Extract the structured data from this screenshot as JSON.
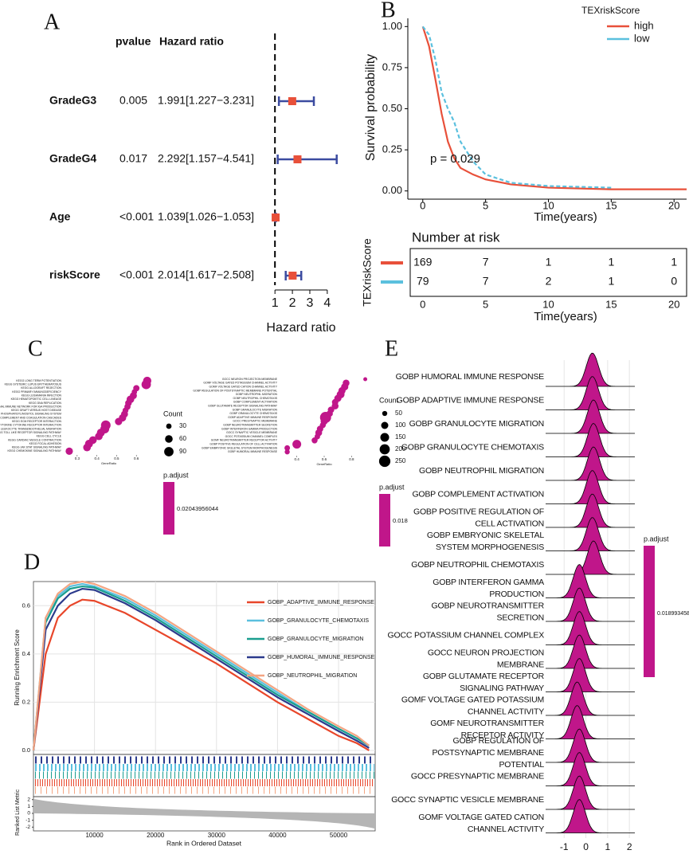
{
  "chart_data": [
    {
      "type": "forest",
      "panel": "A",
      "headers": [
        "pvalue",
        "Hazard ratio"
      ],
      "categories": [
        "GradeG3",
        "GradeG4",
        "Age",
        "riskScore"
      ],
      "pvalues": [
        "0.005",
        "0.017",
        "<0.001",
        "<0.001"
      ],
      "values": [
        1.991,
        2.292,
        1.039,
        2.014
      ],
      "lower": [
        1.227,
        1.157,
        1.026,
        1.617
      ],
      "upper": [
        3.231,
        4.541,
        1.053,
        2.508
      ],
      "value_labels": [
        "1.991[1.227−3.231]",
        "2.292[1.157−4.541]",
        "1.039[1.026−1.053]",
        "2.014[1.617−2.508]"
      ],
      "refline": 1,
      "xlim": [
        0.9,
        4.6
      ],
      "xticks": [
        1,
        2,
        3,
        4
      ],
      "xlabel": "Hazard ratio",
      "color": "#e8503a",
      "ci_color": "#3b4ba0"
    },
    {
      "type": "survival",
      "panel": "B",
      "ylabel": "Survival probability",
      "xlabel": "Time(years)",
      "legend_title": "TEXriskScore",
      "annotation": "p = 0.029",
      "xlim": [
        -1,
        21
      ],
      "xticks": [
        0,
        5,
        10,
        15,
        20
      ],
      "ylim": [
        -0.05,
        1.05
      ],
      "yticks": [
        {
          "value": 0,
          "label": "0.00"
        },
        {
          "value": 0.25,
          "label": "0.25"
        },
        {
          "value": 0.5,
          "label": "0.50"
        },
        {
          "value": 0.75,
          "label": "0.75"
        },
        {
          "value": 1,
          "label": "1.00"
        }
      ],
      "series": [
        {
          "name": "high",
          "color": "#e8503a",
          "x": [
            0,
            0.5,
            1,
            1.5,
            2,
            2.5,
            3,
            4,
            5,
            7,
            10,
            15,
            21
          ],
          "values": [
            1,
            0.88,
            0.68,
            0.47,
            0.3,
            0.2,
            0.14,
            0.1,
            0.07,
            0.04,
            0.02,
            0.01,
            0.01
          ]
        },
        {
          "name": "low",
          "color": "#5bc0de",
          "x": [
            0,
            0.5,
            1,
            1.5,
            2,
            2.5,
            3,
            4,
            5,
            7,
            10,
            15
          ],
          "values": [
            1,
            0.95,
            0.8,
            0.6,
            0.5,
            0.42,
            0.3,
            0.18,
            0.1,
            0.05,
            0.03,
            0.02
          ]
        }
      ],
      "risk_table": {
        "title": "Number at risk",
        "rows": [
          [
            169,
            7,
            1,
            1,
            1
          ],
          [
            79,
            7,
            2,
            1,
            0
          ]
        ],
        "xticks": [
          0,
          5,
          10,
          15,
          20
        ],
        "xlabel": "Time(years)",
        "ylabel": "TEXriskScore"
      }
    },
    {
      "type": "dot",
      "panel": "C",
      "xlabel": "GeneRatio",
      "color": "#c0168a",
      "size_title": "Count",
      "size_ticks": [
        30,
        60,
        90
      ],
      "color_title": "p.adjust",
      "color_label": "0.02043956044",
      "xlim": [
        0.24,
        0.68
      ],
      "xticks": [
        0.3,
        0.4,
        0.5,
        0.6
      ],
      "categories": [
        "KEGG LONG TERM POTENTIATION",
        "KEGG SYSTEMIC LUPUS ERYTHEMATOSUS",
        "KEGG ALLOGRAFT REJECTION",
        "KEGG PRIMARY IMMUNODEFICIENCY",
        "KEGG LEISHMANIA INFECTION",
        "KEGG HEMATOPOIETIC CELL LINEAGE",
        "KEGG DNA REPLICATION",
        "KEGG INTESTINAL IMMUNE NETWORK FOR IGA PRODUCTION",
        "KEGG GRAFT VERSUS HOST DISEASE",
        "KEGG PHOSPHATIDYLINOSITOL SIGNALING SYSTEM",
        "KEGG COMPLEMENT AND COAGULATION CASCADES",
        "KEGG ECM RECEPTOR INTERACTION",
        "KEGG CYTOKINE CYTOKINE RECEPTOR INTERACTION",
        "KEGG LEUKOCYTE TRANSENDOTHELIAL MIGRATION",
        "KEGG TOLL LIKE RECEPTOR SIGNALING PATHWAY",
        "KEGG CELL CYCLE",
        "KEGG CARDIAC MUSCLE CONTRACTION",
        "KEGG FOCAL ADHESION",
        "KEGG JAK STAT SIGNALING PATHWAY",
        "KEGG CHEMOKINE SIGNALING PATHWAY"
      ],
      "values": [
        0.655,
        0.65,
        0.6,
        0.59,
        0.585,
        0.57,
        0.56,
        0.555,
        0.545,
        0.54,
        0.53,
        0.51,
        0.445,
        0.44,
        0.42,
        0.41,
        0.38,
        0.36,
        0.35,
        0.26
      ],
      "sizes": [
        70,
        90,
        40,
        30,
        50,
        60,
        45,
        40,
        35,
        50,
        55,
        55,
        95,
        80,
        65,
        60,
        60,
        65,
        60,
        55
      ]
    },
    {
      "type": "dot",
      "xlabel": "GeneRatio",
      "color": "#c0168a",
      "size_title": "Count",
      "size_ticks": [
        50,
        100,
        150,
        200,
        250
      ],
      "color_title": "p.adjust",
      "color_label": "0.018",
      "xlim": [
        0.28,
        0.92
      ],
      "xticks": [
        0.4,
        0.6,
        0.8
      ],
      "categories": [
        "GOCC NEURON PROJECTION MEMBRANE",
        "GOMF VOLTAGE GATED POTASSIUM CHANNEL ACTIVITY",
        "GOMF VOLTAGE GATED CATION CHANNEL ACTIVITY",
        "GOBP REGULATION OF POSTSYNAPTIC MEMBRANE POTENTIAL",
        "GOBP NEUTROPHIL MIGRATION",
        "GOBP NEUTROPHIL CHEMOTAXIS",
        "GOBP COMPLEMENT ACTIVATION",
        "GOBP GLUTAMATE RECEPTOR SIGNALING PATHWAY",
        "GOBP GRANULOCYTE MIGRATION",
        "GOBP GRANULOCYTE CHEMOTAXIS",
        "GOBP ADAPTIVE IMMUNE RESPONSE",
        "GOCC PRESYNAPTIC MEMBRANE",
        "GOBP NEUROTRANSMITTER SECRETION",
        "GOBP INTERFERON GAMMA PRODUCTION",
        "GOCC SYNAPTIC VESICLE MEMBRANE",
        "GOCC POTASSIUM CHANNEL COMPLEX",
        "GOMF NEUROTRANSMITTER RECEPTOR ACTIVITY",
        "GOBP POSITIVE REGULATION OF CELL ACTIVATION",
        "GOBP EMBRYONIC SKELETAL SYSTEM MORPHOGENESIS",
        "GOBP HUMORAL IMMUNE RESPONSE"
      ],
      "values": [
        0.9,
        0.76,
        0.75,
        0.73,
        0.72,
        0.7,
        0.68,
        0.68,
        0.65,
        0.64,
        0.61,
        0.6,
        0.59,
        0.57,
        0.56,
        0.55,
        0.53,
        0.4,
        0.33,
        0.33
      ],
      "sizes": [
        30,
        90,
        100,
        100,
        120,
        100,
        80,
        90,
        80,
        80,
        240,
        100,
        70,
        80,
        90,
        60,
        70,
        150,
        60,
        50
      ]
    },
    {
      "type": "gsea",
      "panel": "D",
      "ylabel": "Running Enrichment Score",
      "xlabel": "Rank in Ordered Dataset",
      "metric_label": "Ranked List Metric",
      "xlim": [
        0,
        56000
      ],
      "xticks": [
        10000,
        20000,
        30000,
        40000,
        50000
      ],
      "ylim": [
        -0.01,
        0.7
      ],
      "yticks": [
        {
          "value": 0,
          "label": "0.0"
        },
        0.2,
        0.4,
        0.6
      ],
      "metric_ylim": [
        -2.2,
        2.2
      ],
      "metric_yticks": [
        2,
        1,
        0,
        -1,
        -2
      ],
      "x": [
        0,
        2000,
        4000,
        6000,
        8000,
        10000,
        15000,
        20000,
        25000,
        30000,
        35000,
        40000,
        45000,
        50000,
        53000,
        55000
      ],
      "series": [
        {
          "name": "GOBP_ADAPTIVE_IMMUNE_RESPONSE",
          "color": "#e8462a",
          "values": [
            0,
            0.4,
            0.55,
            0.6,
            0.625,
            0.62,
            0.57,
            0.5,
            0.43,
            0.36,
            0.28,
            0.2,
            0.13,
            0.06,
            0.03,
            0
          ]
        },
        {
          "name": "GOBP_GRANULOCYTE_CHEMOTAXIS",
          "color": "#5bc0de",
          "values": [
            0,
            0.55,
            0.64,
            0.68,
            0.69,
            0.68,
            0.63,
            0.56,
            0.48,
            0.4,
            0.32,
            0.24,
            0.16,
            0.09,
            0.05,
            0.02
          ]
        },
        {
          "name": "GOBP_GRANULOCYTE_MIGRATION",
          "color": "#1a9e8f",
          "values": [
            0,
            0.53,
            0.63,
            0.67,
            0.68,
            0.675,
            0.62,
            0.55,
            0.47,
            0.39,
            0.31,
            0.23,
            0.16,
            0.09,
            0.05,
            0.02
          ]
        },
        {
          "name": "GOBP_HUMORAL_IMMUNE_RESPONSE",
          "color": "#2b3a8c",
          "values": [
            0,
            0.5,
            0.6,
            0.65,
            0.67,
            0.665,
            0.61,
            0.54,
            0.46,
            0.38,
            0.3,
            0.22,
            0.15,
            0.08,
            0.04,
            0.01
          ]
        },
        {
          "name": "GOBP_NEUTROPHIL_MIGRATION",
          "color": "#f4a582",
          "values": [
            0,
            0.55,
            0.65,
            0.69,
            0.7,
            0.69,
            0.64,
            0.57,
            0.49,
            0.41,
            0.33,
            0.25,
            0.17,
            0.1,
            0.06,
            0.02
          ]
        }
      ]
    },
    {
      "type": "ridge",
      "panel": "E",
      "color": "#c0168a",
      "color_title": "p.adjust",
      "color_label": "0.01899345874",
      "xlim": [
        -1.85,
        2.25
      ],
      "xticks": [
        -1,
        0,
        1,
        2
      ],
      "categories": [
        [
          "GOBP HUMORAL IMMUNE RESPONSE"
        ],
        [
          "GOBP ADAPTIVE IMMUNE RESPONSE"
        ],
        [
          "GOBP GRANULOCYTE MIGRATION"
        ],
        [
          "GOBP GRANULOCYTE CHEMOTAXIS"
        ],
        [
          "GOBP NEUTROPHIL MIGRATION"
        ],
        [
          "GOBP COMPLEMENT ACTIVATION"
        ],
        [
          "GOBP POSITIVE REGULATION OF",
          "CELL ACTIVATION"
        ],
        [
          "GOBP EMBRYONIC SKELETAL",
          "SYSTEM MORPHOGENESIS"
        ],
        [
          "GOBP NEUTROPHIL CHEMOTAXIS"
        ],
        [
          "GOBP INTERFERON GAMMA",
          "PRODUCTION"
        ],
        [
          "GOBP NEUROTRANSMITTER",
          "SECRETION"
        ],
        [
          "GOCC POTASSIUM CHANNEL COMPLEX"
        ],
        [
          "GOCC NEURON PROJECTION",
          "MEMBRANE"
        ],
        [
          "GOBP GLUTAMATE RECEPTOR",
          "SIGNALING PATHWAY"
        ],
        [
          "GOMF VOLTAGE GATED POTASSIUM",
          "CHANNEL ACTIVITY"
        ],
        [
          "GOMF NEUROTRANSMITTER",
          "RECEPTOR ACTIVITY"
        ],
        [
          "GOBP REGULATION OF",
          "POSTSYNAPTIC MEMBRANE",
          "POTENTIAL"
        ],
        [
          "GOCC PRESYNAPTIC MEMBRANE"
        ],
        [
          "GOCC SYNAPTIC VESICLE MEMBRANE"
        ],
        [
          "GOMF VOLTAGE GATED CATION",
          "CHANNEL ACTIVITY"
        ]
      ],
      "values": [
        0.3,
        0.3,
        0.35,
        0.35,
        0.35,
        0.3,
        0.3,
        0.3,
        0.35,
        -0.3,
        -0.3,
        -0.3,
        -0.3,
        -0.3,
        -0.4,
        -0.4,
        -0.3,
        -0.3,
        -0.3,
        -0.3
      ]
    }
  ]
}
